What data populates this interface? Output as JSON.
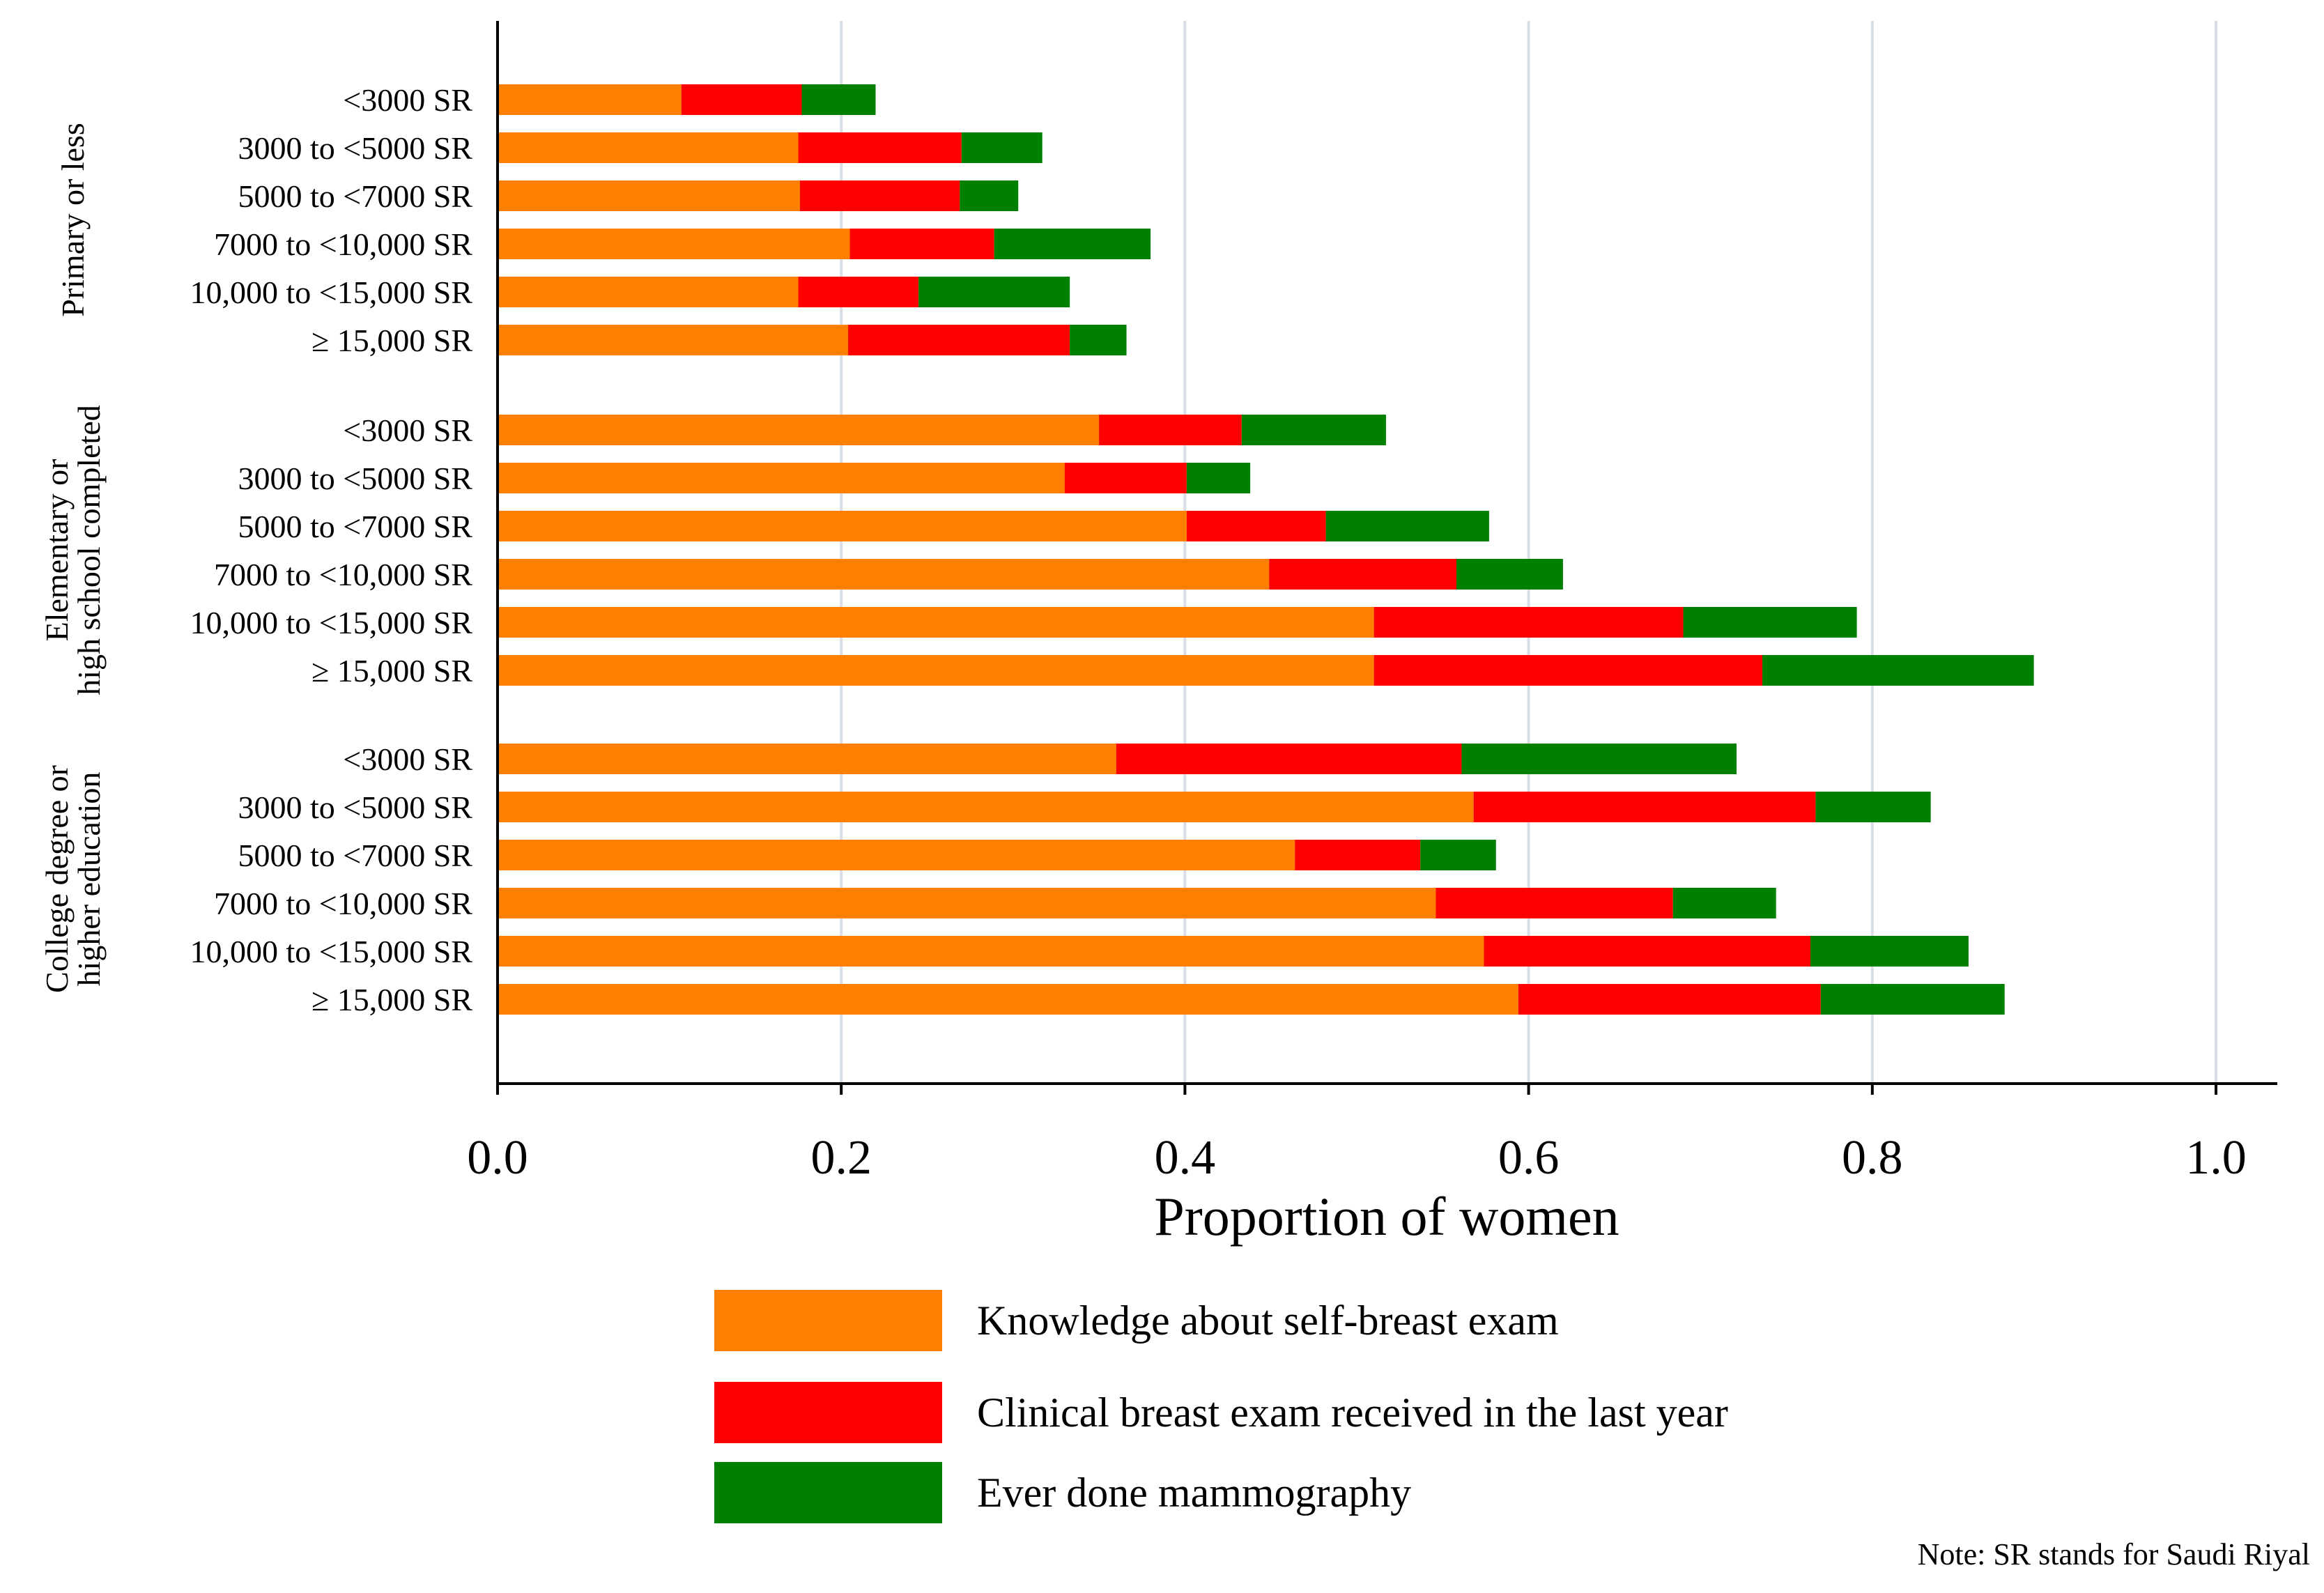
{
  "chart_data": {
    "type": "bar",
    "orientation": "horizontal",
    "stacked": true,
    "xlabel": "Proportion of women",
    "xlim": [
      0,
      1.0
    ],
    "xticks": [
      "0.0",
      "0.2",
      "0.4",
      "0.6",
      "0.8",
      "1.0"
    ],
    "xtick_values": [
      0,
      0.2,
      0.4,
      0.6,
      0.8,
      1.0
    ],
    "grid": "vertical",
    "legend_position": "bottom",
    "note": "Note: SR stands for Saudi Riyal",
    "series": [
      {
        "name": "Knowledge about self-breast exam",
        "color": "#FF8000"
      },
      {
        "name": "Clinical breast exam received in the last year",
        "color": "#FF0000"
      },
      {
        "name": "Ever done mammography",
        "color": "#008000"
      }
    ],
    "groups": [
      {
        "label": "Primary or less",
        "categories": [
          {
            "label": "<3000 SR",
            "values": [
              0.107,
              0.07,
              0.043
            ]
          },
          {
            "label": "3000 to <5000 SR",
            "values": [
              0.175,
              0.095,
              0.047
            ]
          },
          {
            "label": "5000 to <7000 SR",
            "values": [
              0.176,
              0.093,
              0.034
            ]
          },
          {
            "label": "7000 to <10,000 SR",
            "values": [
              0.205,
              0.084,
              0.091
            ]
          },
          {
            "label": "10,000 to <15,000 SR",
            "values": [
              0.175,
              0.07,
              0.088
            ]
          },
          {
            "label": "≥ 15,000 SR",
            "values": [
              0.204,
              0.129,
              0.033
            ]
          }
        ]
      },
      {
        "label": "Elementary or\nhigh school completed",
        "categories": [
          {
            "label": "<3000 SR",
            "values": [
              0.35,
              0.083,
              0.084
            ]
          },
          {
            "label": "3000 to <5000 SR",
            "values": [
              0.33,
              0.071,
              0.037
            ]
          },
          {
            "label": "5000 to <7000 SR",
            "values": [
              0.401,
              0.081,
              0.095
            ]
          },
          {
            "label": "7000 to <10,000 SR",
            "values": [
              0.449,
              0.109,
              0.062
            ]
          },
          {
            "label": "10,000 to <15,000 SR",
            "values": [
              0.51,
              0.18,
              0.101
            ]
          },
          {
            "label": "≥ 15,000 SR",
            "values": [
              0.51,
              0.226,
              0.158
            ]
          }
        ]
      },
      {
        "label": "College degree or\nhigher education",
        "categories": [
          {
            "label": "<3000 SR",
            "values": [
              0.36,
              0.201,
              0.16
            ]
          },
          {
            "label": "3000 to <5000 SR",
            "values": [
              0.568,
              0.199,
              0.067
            ]
          },
          {
            "label": "5000 to <7000 SR",
            "values": [
              0.464,
              0.073,
              0.044
            ]
          },
          {
            "label": "7000 to <10,000 SR",
            "values": [
              0.546,
              0.138,
              0.06
            ]
          },
          {
            "label": "10,000 to <15,000 SR",
            "values": [
              0.574,
              0.19,
              0.092
            ]
          },
          {
            "label": "≥ 15,000 SR",
            "values": [
              0.594,
              0.176,
              0.107
            ]
          }
        ]
      }
    ]
  }
}
